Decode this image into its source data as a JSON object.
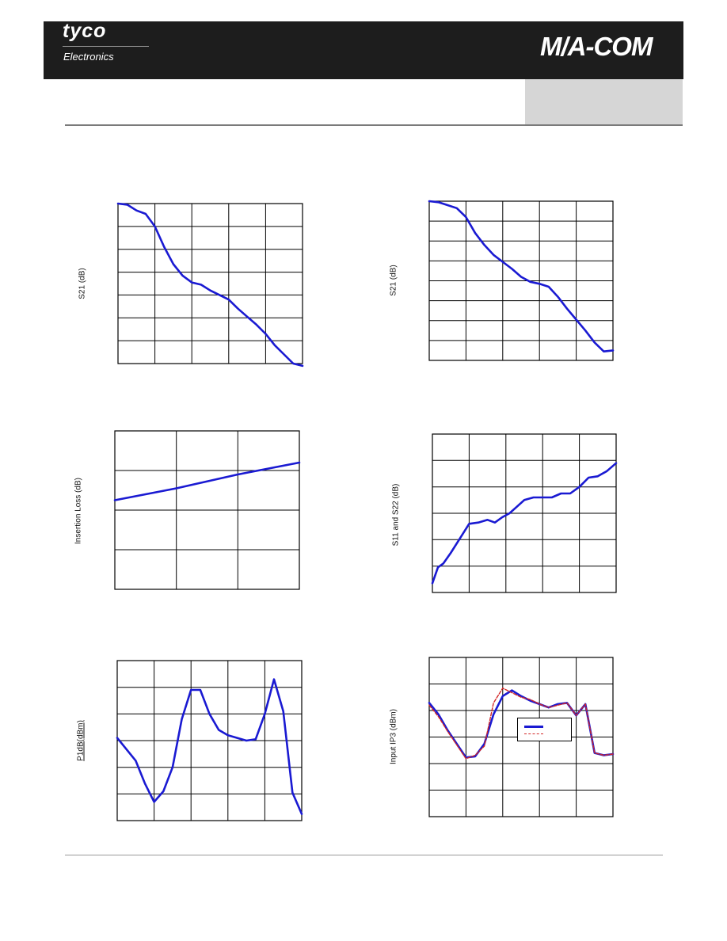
{
  "header": {
    "brand_left": "tyco",
    "brand_left_sub": "Electronics",
    "brand_right": "M/A-COM"
  },
  "colors": {
    "header_bg": "#1d1d1d",
    "grey_box": "#d6d6d6",
    "series_blue": "#1a1ad2",
    "series_red": "#d22626"
  },
  "chart_data": [
    {
      "type": "line",
      "ylabel": "S21 (dB)",
      "grid": true,
      "x": [
        0,
        0.5,
        1,
        1.5,
        2,
        2.5,
        3,
        3.5,
        4,
        4.5,
        5,
        5.5,
        6,
        6.5,
        7,
        7.5,
        8,
        8.5,
        9,
        9.5,
        10
      ],
      "series": [
        {
          "values": [
            7,
            6.95,
            6.7,
            6.55,
            6,
            5.1,
            4.35,
            3.85,
            3.55,
            3.45,
            3.2,
            3.0,
            2.8,
            2.4,
            2.05,
            1.7,
            1.3,
            0.8,
            0.4,
            0.0,
            -0.1
          ]
        }
      ],
      "xlim": [
        0,
        10
      ],
      "ylim": [
        0,
        7
      ]
    },
    {
      "type": "line",
      "ylabel": "S21 (dB)",
      "grid": true,
      "x": [
        0,
        0.5,
        1,
        1.5,
        2,
        2.5,
        3,
        3.5,
        4,
        4.5,
        5,
        5.5,
        6,
        6.5,
        7,
        7.5,
        8,
        8.5,
        9,
        9.5,
        10
      ],
      "series": [
        {
          "values": [
            8,
            7.95,
            7.8,
            7.65,
            7.2,
            6.4,
            5.8,
            5.3,
            4.95,
            4.6,
            4.2,
            3.95,
            3.85,
            3.7,
            3.2,
            2.6,
            2.05,
            1.5,
            0.9,
            0.45,
            0.5
          ]
        }
      ],
      "xlim": [
        0,
        10
      ],
      "ylim": [
        0,
        8
      ]
    },
    {
      "type": "line",
      "ylabel": "Insertion Loss (dB)",
      "grid": true,
      "x": [
        0,
        1,
        2,
        3
      ],
      "series": [
        {
          "values": [
            2.25,
            2.55,
            2.9,
            3.2
          ]
        }
      ],
      "xlim": [
        0,
        3
      ],
      "ylim": [
        0,
        4
      ]
    },
    {
      "type": "line",
      "ylabel": "S11 and S22 (dB)",
      "grid": true,
      "x": [
        0,
        0.3,
        0.6,
        1,
        1.5,
        2,
        2.5,
        3,
        3.4,
        3.8,
        4.2,
        4.6,
        5,
        5.5,
        6,
        6.5,
        7,
        7.5,
        8,
        8.5,
        9,
        9.5,
        10
      ],
      "series": [
        {
          "values": [
            0.35,
            0.95,
            1.1,
            1.5,
            2.05,
            2.6,
            2.65,
            2.75,
            2.65,
            2.85,
            3.0,
            3.25,
            3.5,
            3.6,
            3.6,
            3.6,
            3.75,
            3.75,
            4.0,
            4.35,
            4.4,
            4.6,
            4.9
          ]
        }
      ],
      "xlim": [
        0,
        10
      ],
      "ylim": [
        0,
        6
      ]
    },
    {
      "type": "line",
      "ylabel": "P1dB(dBm)",
      "grid": true,
      "x": [
        0,
        1,
        1.5,
        2,
        2.5,
        3,
        3.5,
        4,
        4.5,
        5,
        5.5,
        6,
        6.5,
        7,
        7.5,
        8,
        8.5,
        9,
        9.5,
        10
      ],
      "series": [
        {
          "values": [
            3.1,
            2.25,
            1.4,
            0.7,
            1.1,
            2.0,
            3.8,
            4.9,
            4.9,
            4.0,
            3.4,
            3.2,
            3.1,
            3.0,
            3.05,
            4.0,
            5.3,
            4.1,
            1.05,
            0.25
          ]
        }
      ],
      "xlim": [
        0,
        10
      ],
      "ylim": [
        0,
        6
      ]
    },
    {
      "type": "line",
      "ylabel": "Input IP3 (dBm)",
      "grid": true,
      "legend": "center-right",
      "x": [
        0,
        0.5,
        1,
        1.5,
        2,
        2.5,
        3,
        3.5,
        4,
        4.5,
        5,
        5.5,
        6,
        6.5,
        7,
        7.5,
        8,
        8.5,
        9,
        9.5,
        10
      ],
      "series": [
        {
          "values": [
            5.0,
            4.5,
            3.8,
            3.2,
            2.6,
            2.65,
            3.2,
            4.5,
            5.3,
            5.55,
            5.3,
            5.1,
            4.95,
            4.8,
            4.95,
            5.0,
            4.45,
            4.95,
            2.8,
            2.7,
            2.75
          ]
        },
        {
          "values": [
            4.9,
            4.4,
            3.75,
            3.15,
            2.55,
            2.7,
            3.1,
            5.0,
            5.65,
            5.45,
            5.25,
            5.15,
            4.95,
            4.8,
            4.9,
            5.0,
            4.45,
            4.95,
            2.8,
            2.7,
            2.75
          ]
        }
      ],
      "xlim": [
        0,
        10
      ],
      "ylim": [
        0,
        7
      ]
    }
  ]
}
